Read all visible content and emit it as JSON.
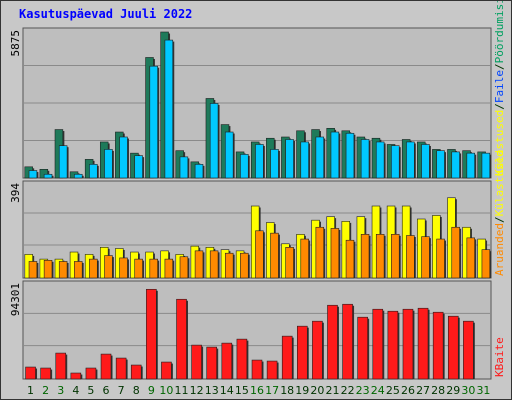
{
  "title": "Kasutuspäevad Juuli 2022",
  "colors": {
    "title": "#0000ff",
    "background": "#c8c8c8",
    "panel": "#bebebe",
    "grid": "#8a8a8a",
    "weekday": "#006600",
    "default_day": "#003300",
    "series_visits": "#1e7a5a",
    "series_pages": "#00c8ff",
    "series_hits": "#ffff00",
    "series_files": "#ff8a00",
    "series_bytes": "#ff1a1a"
  },
  "chart_data": [
    {
      "type": "bar",
      "panel": "top",
      "y_axis_label": "5875",
      "ylim": [
        0,
        5875
      ],
      "right_label": {
        "parts": [
          {
            "text": "Külastused",
            "color": "#ffff00"
          },
          {
            "text": "/",
            "color": "#003300"
          },
          {
            "text": "Faile",
            "color": "#0044ff"
          },
          {
            "text": "/",
            "color": "#003300"
          },
          {
            "text": "Pöördumisi",
            "color": "#00a060"
          }
        ]
      },
      "categories": [
        "1",
        "2",
        "3",
        "4",
        "5",
        "6",
        "7",
        "8",
        "9",
        "10",
        "11",
        "12",
        "13",
        "14",
        "15",
        "16",
        "17",
        "18",
        "19",
        "20",
        "21",
        "22",
        "23",
        "24",
        "25",
        "26",
        "27",
        "28",
        "29",
        "30",
        "31"
      ],
      "series": [
        {
          "name": "Külastused",
          "color": "#1e7a5a",
          "values": [
            450,
            350,
            1950,
            250,
            750,
            1450,
            1850,
            1000,
            4850,
            5875,
            1100,
            650,
            3200,
            2150,
            1050,
            1450,
            1600,
            1650,
            1900,
            1950,
            2000,
            1900,
            1650,
            1600,
            1350,
            1550,
            1450,
            1150,
            1150,
            1100,
            1050
          ]
        },
        {
          "name": "Faile",
          "color": "#00c8ff",
          "values": [
            300,
            150,
            1300,
            150,
            550,
            1150,
            1650,
            900,
            4500,
            5550,
            850,
            550,
            3000,
            1850,
            950,
            1350,
            1150,
            1550,
            1450,
            1650,
            1850,
            1800,
            1550,
            1450,
            1300,
            1450,
            1350,
            1100,
            1050,
            1000,
            1000
          ]
        }
      ]
    },
    {
      "type": "bar",
      "panel": "middle",
      "y_axis_label": "394",
      "ylim": [
        0,
        394
      ],
      "right_label": {
        "parts": [
          {
            "text": "Aruanded",
            "color": "#ff8a00"
          },
          {
            "text": "/",
            "color": "#003300"
          },
          {
            "text": "Külastused",
            "color": "#ffff00"
          }
        ]
      },
      "categories": [
        "1",
        "2",
        "3",
        "4",
        "5",
        "6",
        "7",
        "8",
        "9",
        "10",
        "11",
        "12",
        "13",
        "14",
        "15",
        "16",
        "17",
        "18",
        "19",
        "20",
        "21",
        "22",
        "23",
        "24",
        "25",
        "26",
        "27",
        "28",
        "29",
        "30",
        "31"
      ],
      "series": [
        {
          "name": "Külastused",
          "color": "#ffff00",
          "values": [
            100,
            80,
            80,
            110,
            100,
            130,
            125,
            110,
            110,
            115,
            100,
            135,
            130,
            120,
            115,
            305,
            235,
            145,
            185,
            245,
            260,
            240,
            260,
            305,
            305,
            305,
            250,
            265,
            340,
            215,
            165
          ]
        },
        {
          "name": "Aruanded",
          "color": "#ff8a00",
          "values": [
            70,
            75,
            70,
            70,
            80,
            95,
            85,
            80,
            80,
            80,
            90,
            115,
            115,
            105,
            105,
            200,
            190,
            130,
            165,
            215,
            210,
            160,
            185,
            185,
            185,
            180,
            175,
            165,
            215,
            170,
            120
          ]
        }
      ]
    },
    {
      "type": "bar",
      "panel": "bottom",
      "y_axis_label": "94301",
      "ylim": [
        0,
        94301
      ],
      "right_label": {
        "parts": [
          {
            "text": "KBaite",
            "color": "#ff1a1a"
          }
        ]
      },
      "categories": [
        "1",
        "2",
        "3",
        "4",
        "5",
        "6",
        "7",
        "8",
        "9",
        "10",
        "11",
        "12",
        "13",
        "14",
        "15",
        "16",
        "17",
        "18",
        "19",
        "20",
        "21",
        "22",
        "23",
        "24",
        "25",
        "26",
        "27",
        "28",
        "29",
        "30",
        "31"
      ],
      "series": [
        {
          "name": "KBaite",
          "color": "#ff1a1a",
          "values": [
            12000,
            11000,
            26000,
            6000,
            11000,
            25000,
            21000,
            14000,
            90000,
            17000,
            80000,
            34000,
            32000,
            36000,
            40000,
            19000,
            18000,
            43000,
            53000,
            58000,
            74000,
            75000,
            62000,
            70000,
            68000,
            70000,
            71000,
            67000,
            63000,
            58000,
            0
          ]
        }
      ]
    }
  ],
  "days": [
    {
      "label": "1",
      "weekend": false
    },
    {
      "label": "2",
      "weekend": true
    },
    {
      "label": "3",
      "weekend": true
    },
    {
      "label": "4",
      "weekend": false
    },
    {
      "label": "5",
      "weekend": false
    },
    {
      "label": "6",
      "weekend": false
    },
    {
      "label": "7",
      "weekend": false
    },
    {
      "label": "8",
      "weekend": false
    },
    {
      "label": "9",
      "weekend": true
    },
    {
      "label": "10",
      "weekend": true
    },
    {
      "label": "11",
      "weekend": false
    },
    {
      "label": "12",
      "weekend": false
    },
    {
      "label": "13",
      "weekend": false
    },
    {
      "label": "14",
      "weekend": false
    },
    {
      "label": "15",
      "weekend": false
    },
    {
      "label": "16",
      "weekend": true
    },
    {
      "label": "17",
      "weekend": true
    },
    {
      "label": "18",
      "weekend": false
    },
    {
      "label": "19",
      "weekend": false
    },
    {
      "label": "20",
      "weekend": false
    },
    {
      "label": "21",
      "weekend": false
    },
    {
      "label": "22",
      "weekend": false
    },
    {
      "label": "23",
      "weekend": true
    },
    {
      "label": "24",
      "weekend": true
    },
    {
      "label": "25",
      "weekend": false
    },
    {
      "label": "26",
      "weekend": false
    },
    {
      "label": "27",
      "weekend": false
    },
    {
      "label": "28",
      "weekend": false
    },
    {
      "label": "29",
      "weekend": false
    },
    {
      "label": "30",
      "weekend": true
    },
    {
      "label": "31",
      "weekend": true
    }
  ]
}
